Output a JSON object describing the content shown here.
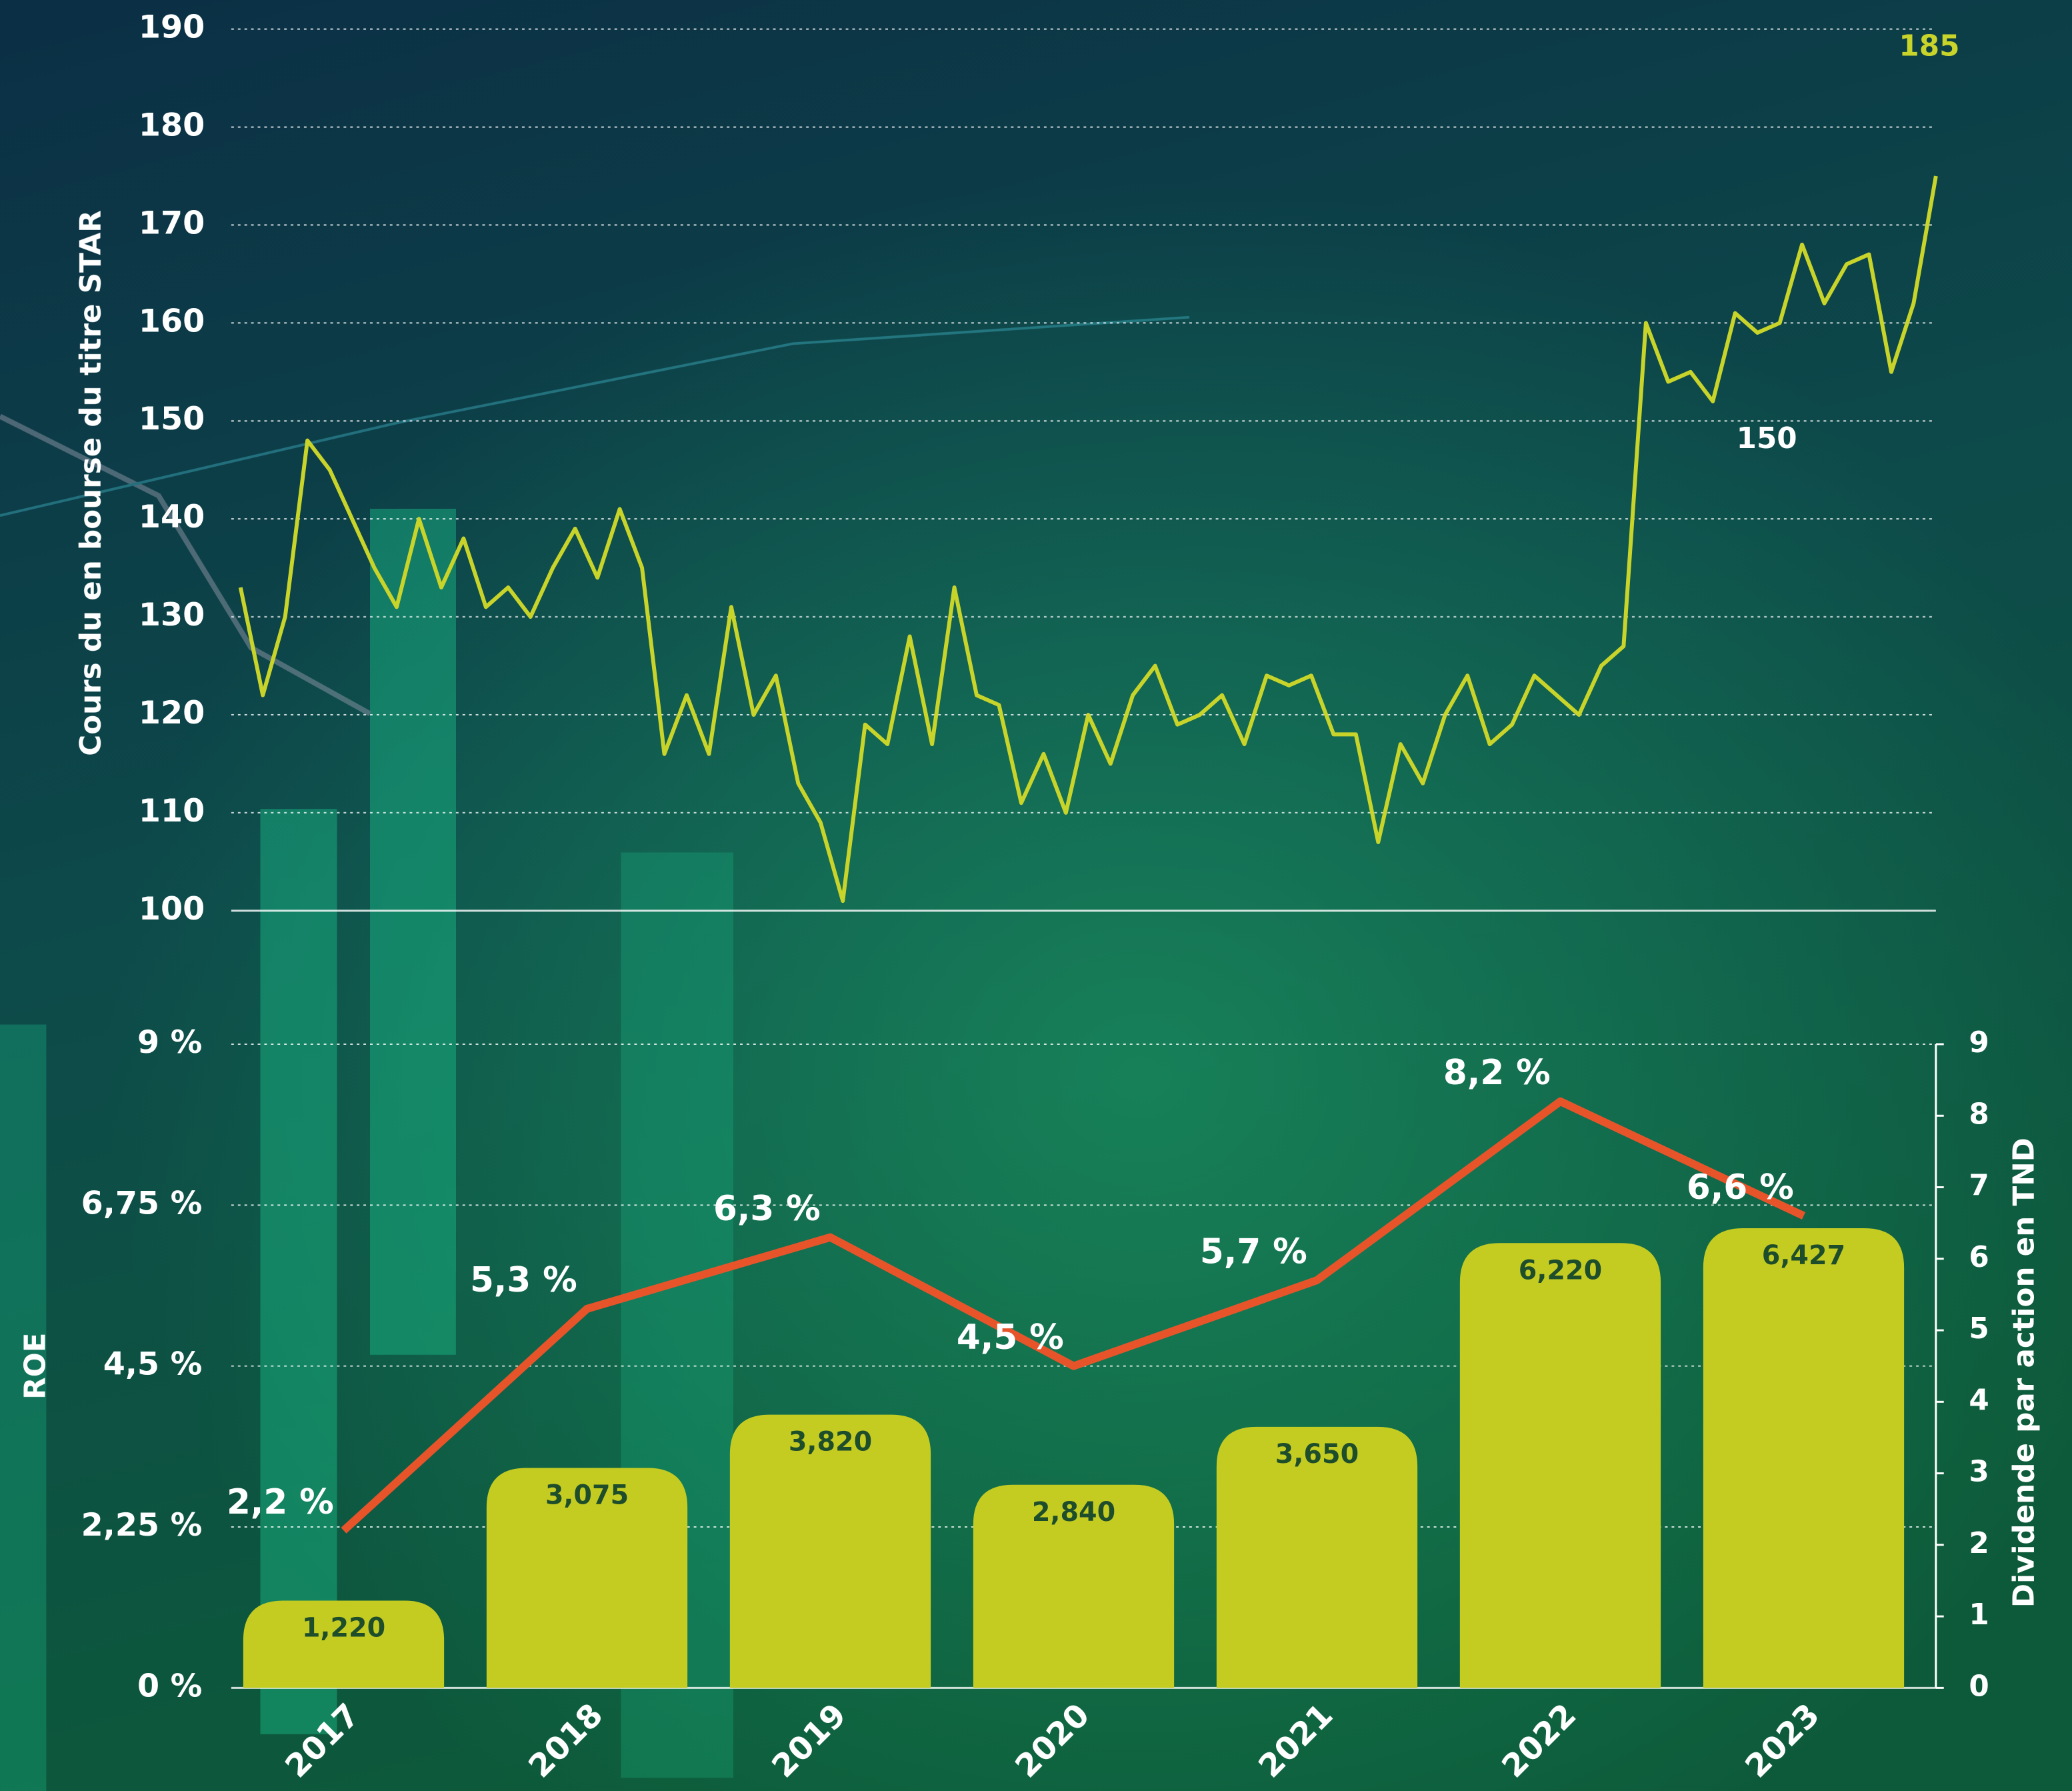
{
  "chart_data": [
    {
      "type": "line",
      "ylabel": "Cours du en bourse du titre STAR",
      "ylim": [
        100,
        190
      ],
      "yticks": [
        100,
        110,
        120,
        130,
        140,
        150,
        160,
        170,
        180,
        190
      ],
      "grid": true,
      "color": "#c8d42a",
      "values": [
        133,
        122,
        130,
        148,
        145,
        140,
        135,
        131,
        140,
        133,
        138,
        131,
        133,
        130,
        135,
        139,
        134,
        141,
        135,
        116,
        122,
        116,
        131,
        120,
        124,
        113,
        109,
        101,
        119,
        117,
        128,
        117,
        133,
        122,
        121,
        111,
        116,
        110,
        120,
        115,
        122,
        125,
        119,
        120,
        122,
        117,
        124,
        123,
        124,
        118,
        118,
        107,
        117,
        113,
        120,
        124,
        117,
        119,
        124,
        122,
        120,
        125,
        127,
        160,
        154,
        155,
        152,
        161,
        159,
        160,
        168,
        162,
        166,
        167,
        155,
        162,
        175
      ],
      "annotations": [
        "185",
        "150"
      ]
    },
    {
      "type": "combo",
      "ylabel": "ROE",
      "y2label": "Dividende par action en TND",
      "categories": [
        "2017",
        "2018",
        "2019",
        "2020",
        "2021",
        "2022",
        "2023"
      ],
      "ylim": [
        0,
        9
      ],
      "yticks": [
        {
          "value": 0,
          "label": "0 %"
        },
        {
          "value": 2.25,
          "label": "2,25 %"
        },
        {
          "value": 4.5,
          "label": "4,5 %"
        },
        {
          "value": 6.75,
          "label": "6,75 %"
        },
        {
          "value": 9,
          "label": "9 %"
        }
      ],
      "y2lim": [
        0,
        9
      ],
      "y2ticks": [
        0,
        1,
        2,
        3,
        4,
        5,
        6,
        7,
        8,
        9
      ],
      "grid": true,
      "series": [
        {
          "type": "bar",
          "axis": "y2",
          "color": "#c4cc22",
          "values": [
            1.22,
            3.075,
            3.82,
            2.84,
            3.65,
            6.22,
            6.427
          ],
          "value_labels": [
            "1,220",
            "3,075",
            "3,820",
            "2,840",
            "3,650",
            "6,220",
            "6,427"
          ]
        },
        {
          "type": "line",
          "color": "#e8542a",
          "values": [
            2.2,
            5.3,
            6.3,
            4.5,
            5.7,
            8.2,
            6.6
          ],
          "value_labels": [
            "2,2 %",
            "5,3 %",
            "6,3 %",
            "4,5 %",
            "5,7 %",
            "8,2 %",
            "6,6 %"
          ]
        }
      ]
    }
  ]
}
